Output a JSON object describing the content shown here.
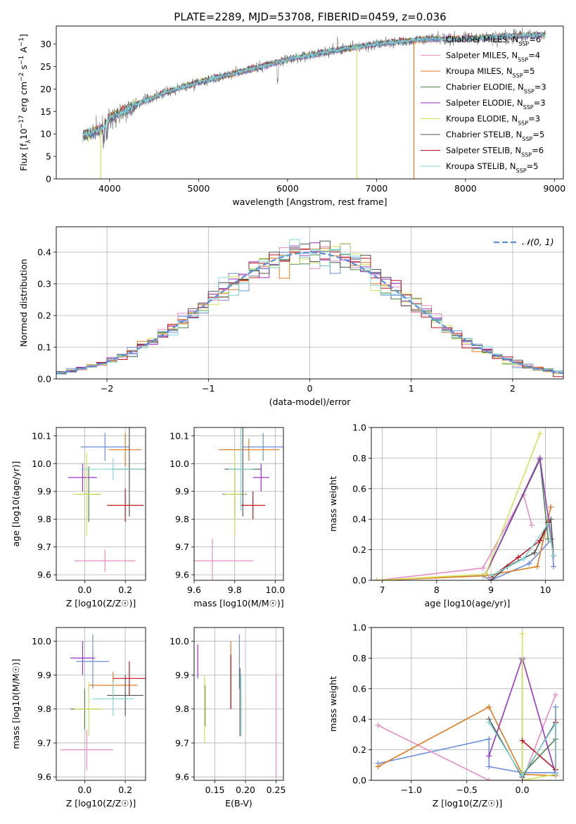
{
  "figure": {
    "title": "PLATE=2289, MJD=53708, FIBERID=0459, z=0.036"
  },
  "legend_labels": [
    {
      "pre": "Chabrier MILES, N",
      "sub": "SSP",
      "post": "=6",
      "color": "#6a8fdc"
    },
    {
      "pre": "Salpeter MILES, N",
      "sub": "SSP",
      "post": "=4",
      "color": "#e88cc4"
    },
    {
      "pre": "Kroupa MILES, N",
      "sub": "SSP",
      "post": "=5",
      "color": "#e07a1f"
    },
    {
      "pre": "Chabrier ELODIE, N",
      "sub": "SSP",
      "post": "=3",
      "color": "#4a8a4a"
    },
    {
      "pre": "Salpeter ELODIE, N",
      "sub": "SSP",
      "post": "=3",
      "color": "#9932cc"
    },
    {
      "pre": "Kroupa ELODIE, N",
      "sub": "SSP",
      "post": "=3",
      "color": "#d4e157"
    },
    {
      "pre": "Chabrier STELIB, N",
      "sub": "SSP",
      "post": "=5",
      "color": "#555555"
    },
    {
      "pre": "Salpeter STELIB, N",
      "sub": "SSP",
      "post": "=6",
      "color": "#c0141e"
    },
    {
      "pre": "Kroupa STELIB, N",
      "sub": "SSP",
      "post": "=5",
      "color": "#7fd8d8"
    }
  ],
  "chart_data": [
    {
      "id": "spectrum",
      "type": "line",
      "title": "PLATE=2289, MJD=53708, FIBERID=0459, z=0.036",
      "xlabel": "wavelength [Angstrom, rest frame]",
      "ylabel": "Flux [fλ10⁻¹⁷ erg cm⁻² s⁻¹ A⁻¹]",
      "xlim": [
        3400,
        9100
      ],
      "ylim": [
        0,
        34
      ],
      "xticks": [
        4000,
        5000,
        6000,
        7000,
        8000,
        9000
      ],
      "yticks": [
        0,
        5,
        10,
        15,
        20,
        25,
        30
      ],
      "continuum": [
        [
          3700,
          9.5
        ],
        [
          3900,
          11.0
        ],
        [
          4000,
          13.5
        ],
        [
          4300,
          16.5
        ],
        [
          4600,
          19.0
        ],
        [
          5000,
          21.5
        ],
        [
          5500,
          24.0
        ],
        [
          6000,
          26.5
        ],
        [
          6500,
          28.5
        ],
        [
          7000,
          30.0
        ],
        [
          7500,
          31.0
        ],
        [
          8000,
          31.2
        ],
        [
          8500,
          31.8
        ],
        [
          8900,
          32.0
        ]
      ],
      "dropouts": [
        {
          "x": 3900,
          "series": "Kroupa ELODIE"
        },
        {
          "x": 6780,
          "series": "Kroupa ELODIE"
        },
        {
          "x": 7420,
          "series": "Kroupa MILES"
        }
      ]
    },
    {
      "id": "residuals",
      "type": "histogram",
      "xlabel": "(data-model)/error",
      "ylabel": "Normed distribution",
      "xlim": [
        -2.5,
        2.5
      ],
      "ylim": [
        0,
        0.48
      ],
      "xticks": [
        -2,
        -1,
        0,
        1,
        2
      ],
      "yticks": [
        0.0,
        0.1,
        0.2,
        0.3,
        0.4
      ],
      "grid": true,
      "reference_curve": "𝒩(0, 1)",
      "legend_position": "top-right",
      "bin_width": 0.1
    },
    {
      "id": "age_vs_Z",
      "type": "scatter",
      "xlabel": "Z [log10(Z/Z☉)]",
      "ylabel": "age  [log10(age/yr)]",
      "xlim": [
        -0.14,
        0.3
      ],
      "ylim": [
        9.58,
        10.13
      ],
      "xticks": [
        0.0,
        0.2
      ],
      "yticks": [
        9.6,
        9.7,
        9.8,
        9.9,
        10.0,
        10.1
      ],
      "points": [
        {
          "x": 0.1,
          "y": 10.06,
          "xerr": 0.12,
          "yerr": 0.05
        },
        {
          "x": 0.1,
          "y": 9.65,
          "xerr": 0.15,
          "yerr": 0.04
        },
        {
          "x": 0.2,
          "y": 10.05,
          "xerr": 0.08,
          "yerr": 0.06
        },
        {
          "x": 0.02,
          "y": 9.89,
          "xerr": 0.06,
          "yerr": 0.1
        },
        {
          "x": -0.01,
          "y": 9.95,
          "xerr": 0.07,
          "yerr": 0.05
        },
        {
          "x": 0.01,
          "y": 9.89,
          "xerr": 0.07,
          "yerr": 0.15
        },
        {
          "x": 0.22,
          "y": 9.98,
          "xerr": 0.09,
          "yerr": 0.17
        },
        {
          "x": 0.2,
          "y": 9.85,
          "xerr": 0.09,
          "yerr": 0.06
        },
        {
          "x": 0.14,
          "y": 9.98,
          "xerr": 0.16,
          "yerr": 0.04
        }
      ]
    },
    {
      "id": "age_vs_mass",
      "type": "scatter",
      "xlabel": "mass [log10(M/M☉)]",
      "xlim": [
        9.6,
        10.04
      ],
      "ylim": [
        9.58,
        10.13
      ],
      "xticks": [
        9.6,
        9.8,
        10.0
      ],
      "yticks": [
        9.6,
        9.7,
        9.8,
        9.9,
        10.0,
        10.1
      ],
      "points": [
        {
          "x": 9.94,
          "y": 10.06,
          "xerr": 0.1,
          "yerr": 0.05
        },
        {
          "x": 9.69,
          "y": 9.65,
          "xerr": 0.2,
          "yerr": 0.08
        },
        {
          "x": 9.87,
          "y": 10.05,
          "xerr": 0.15,
          "yerr": 0.04
        },
        {
          "x": 9.8,
          "y": 9.89,
          "xerr": 0.06,
          "yerr": 0.09
        },
        {
          "x": 9.93,
          "y": 9.95,
          "xerr": 0.04,
          "yerr": 0.05
        },
        {
          "x": 9.8,
          "y": 9.89,
          "xerr": 0.05,
          "yerr": 0.15
        },
        {
          "x": 9.84,
          "y": 9.98,
          "xerr": 0.09,
          "yerr": 0.17
        },
        {
          "x": 9.89,
          "y": 9.85,
          "xerr": 0.06,
          "yerr": 0.05
        },
        {
          "x": 9.83,
          "y": 9.98,
          "xerr": 0.06,
          "yerr": 0.15
        }
      ]
    },
    {
      "id": "weight_vs_age",
      "type": "line",
      "xlabel": "age  [log10(age/yr)]",
      "ylabel": "mass weight",
      "xlim": [
        6.8,
        10.33
      ],
      "ylim": [
        0,
        1.0
      ],
      "xticks": [
        7,
        8,
        9,
        10
      ],
      "yticks": [
        0.0,
        0.2,
        0.4,
        0.6,
        0.8,
        1.0
      ],
      "series": [
        {
          "name": "Chabrier MILES",
          "points": [
            [
              6.9,
              0.0
            ],
            [
              8.85,
              0.03
            ],
            [
              9.0,
              0.0
            ],
            [
              9.7,
              0.11
            ],
            [
              10.12,
              0.27
            ],
            [
              10.15,
              0.09
            ]
          ]
        },
        {
          "name": "Salpeter MILES",
          "points": [
            [
              6.9,
              0.0
            ],
            [
              8.85,
              0.08
            ],
            [
              9.6,
              0.56
            ],
            [
              9.75,
              0.36
            ]
          ]
        },
        {
          "name": "Kroupa MILES",
          "points": [
            [
              6.9,
              0.0
            ],
            [
              8.9,
              0.03
            ],
            [
              9.85,
              0.09
            ],
            [
              10.1,
              0.48
            ]
          ]
        },
        {
          "name": "Chabrier ELODIE",
          "points": [
            [
              8.9,
              0.04
            ],
            [
              9.9,
              0.79
            ],
            [
              10.05,
              0.27
            ]
          ]
        },
        {
          "name": "Salpeter ELODIE",
          "points": [
            [
              8.9,
              0.04
            ],
            [
              9.9,
              0.8
            ],
            [
              10.15,
              0.16
            ]
          ]
        },
        {
          "name": "Kroupa ELODIE",
          "points": [
            [
              6.9,
              0.0
            ],
            [
              8.9,
              0.04
            ],
            [
              9.9,
              0.96
            ]
          ]
        },
        {
          "name": "Chabrier STELIB",
          "points": [
            [
              9.0,
              0.0
            ],
            [
              9.3,
              0.09
            ],
            [
              9.8,
              0.18
            ],
            [
              10.1,
              0.4
            ],
            [
              10.15,
              0.16
            ]
          ]
        },
        {
          "name": "Salpeter STELIB",
          "points": [
            [
              9.0,
              0.02
            ],
            [
              9.5,
              0.15
            ],
            [
              9.9,
              0.26
            ],
            [
              10.05,
              0.38
            ],
            [
              10.15,
              0.16
            ]
          ]
        },
        {
          "name": "Kroupa STELIB",
          "points": [
            [
              9.0,
              0.03
            ],
            [
              9.6,
              0.14
            ],
            [
              10.05,
              0.37
            ],
            [
              10.15,
              0.16
            ]
          ]
        }
      ]
    },
    {
      "id": "mass_vs_Z",
      "type": "scatter",
      "xlabel": "Z [log10(Z/Z☉)]",
      "ylabel": "mass [log10(M/M☉)]",
      "xlim": [
        -0.14,
        0.3
      ],
      "ylim": [
        9.59,
        10.04
      ],
      "xticks": [
        0.0,
        0.2
      ],
      "yticks": [
        9.6,
        9.7,
        9.8,
        9.9,
        10.0
      ],
      "points": [
        {
          "x": 0.04,
          "y": 9.94,
          "xerr": 0.08,
          "yerr": 0.08
        },
        {
          "x": 0.01,
          "y": 9.68,
          "xerr": 0.13,
          "yerr": 0.06
        },
        {
          "x": 0.14,
          "y": 9.87,
          "xerr": 0.12,
          "yerr": 0.04
        },
        {
          "x": 0.0,
          "y": 9.8,
          "xerr": 0.07,
          "yerr": 0.06
        },
        {
          "x": -0.01,
          "y": 9.95,
          "xerr": 0.06,
          "yerr": 0.05
        },
        {
          "x": 0.02,
          "y": 9.8,
          "xerr": 0.07,
          "yerr": 0.08
        },
        {
          "x": 0.2,
          "y": 9.84,
          "xerr": 0.09,
          "yerr": 0.06
        },
        {
          "x": 0.22,
          "y": 9.89,
          "xerr": 0.08,
          "yerr": 0.05
        },
        {
          "x": 0.14,
          "y": 9.83,
          "xerr": 0.1,
          "yerr": 0.05
        }
      ]
    },
    {
      "id": "mass_vs_ebv",
      "type": "scatter",
      "xlabel": "E(B-V)",
      "xlim": [
        0.116,
        0.262
      ],
      "ylim": [
        9.59,
        10.04
      ],
      "xticks": [
        0.15,
        0.2,
        0.25
      ],
      "yticks": [
        9.6,
        9.7,
        9.8,
        9.9,
        10.0
      ],
      "points": [
        {
          "x": 0.19,
          "y": 9.94,
          "yerr": 0.08
        },
        {
          "x": 0.25,
          "y": 9.75,
          "yerr": 0.15
        },
        {
          "x": 0.176,
          "y": 9.9,
          "yerr": 0.1
        },
        {
          "x": 0.134,
          "y": 9.81,
          "yerr": 0.06
        },
        {
          "x": 0.122,
          "y": 9.94,
          "yerr": 0.05
        },
        {
          "x": 0.133,
          "y": 9.8,
          "yerr": 0.1
        },
        {
          "x": 0.191,
          "y": 9.82,
          "yerr": 0.1
        },
        {
          "x": 0.176,
          "y": 9.88,
          "yerr": 0.08
        },
        {
          "x": 0.193,
          "y": 9.81,
          "yerr": 0.09
        }
      ]
    },
    {
      "id": "weight_vs_Z",
      "type": "line",
      "xlabel": "Z [log10(Z/Z☉)]",
      "ylabel": "mass weight",
      "xlim": [
        -1.36,
        0.37
      ],
      "ylim": [
        0,
        1.0
      ],
      "xticks": [
        -1.0,
        -0.5,
        0.0
      ],
      "yticks": [
        0.0,
        0.2,
        0.4,
        0.6,
        0.8,
        1.0
      ],
      "series": [
        {
          "name": "Chabrier MILES",
          "points": [
            [
              -1.3,
              0.11
            ],
            [
              -0.3,
              0.27
            ],
            [
              -0.3,
              0.09
            ],
            [
              0.0,
              0.05
            ],
            [
              0.3,
              0.05
            ],
            [
              0.3,
              0.48
            ]
          ]
        },
        {
          "name": "Salpeter MILES",
          "points": [
            [
              -1.3,
              0.36
            ],
            [
              -0.3,
              0.0
            ],
            [
              0.0,
              0.0
            ],
            [
              0.3,
              0.56
            ]
          ]
        },
        {
          "name": "Kroupa MILES",
          "points": [
            [
              -1.3,
              0.09
            ],
            [
              -0.3,
              0.48
            ],
            [
              0.0,
              0.04
            ],
            [
              0.3,
              0.03
            ]
          ]
        },
        {
          "name": "Chabrier ELODIE",
          "points": [
            [
              0.0,
              0.79
            ],
            [
              0.0,
              0.04
            ],
            [
              0.3,
              0.27
            ]
          ]
        },
        {
          "name": "Salpeter ELODIE",
          "points": [
            [
              -0.3,
              0.16
            ],
            [
              0.0,
              0.8
            ],
            [
              0.3,
              0.04
            ]
          ]
        },
        {
          "name": "Kroupa ELODIE",
          "points": [
            [
              0.0,
              0.96
            ],
            [
              0.0,
              0.0
            ],
            [
              0.3,
              0.04
            ]
          ]
        },
        {
          "name": "Chabrier STELIB",
          "points": [
            [
              -0.3,
              0.4
            ],
            [
              0.0,
              0.02
            ],
            [
              0.3,
              0.38
            ],
            [
              0.3,
              0.07
            ]
          ]
        },
        {
          "name": "Salpeter STELIB",
          "points": [
            [
              0.0,
              0.26
            ],
            [
              0.3,
              0.07
            ],
            [
              0.3,
              0.38
            ]
          ]
        },
        {
          "name": "Kroupa STELIB",
          "points": [
            [
              -0.3,
              0.38
            ],
            [
              0.0,
              0.03
            ],
            [
              0.3,
              0.37
            ],
            [
              0.3,
              0.04
            ]
          ]
        }
      ]
    }
  ]
}
